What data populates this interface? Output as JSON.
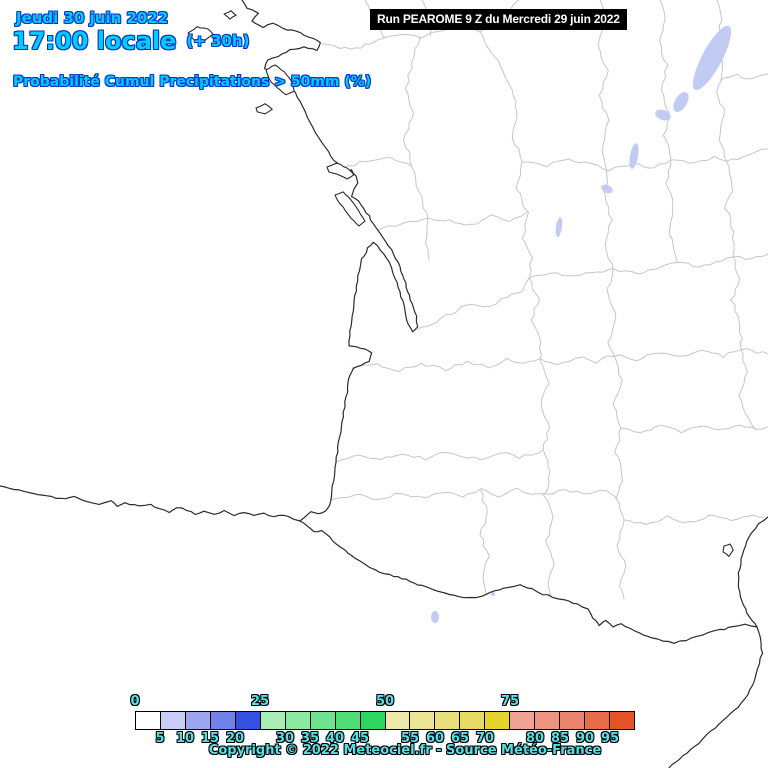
{
  "header": {
    "date": "Jeudi 30 juin 2022",
    "time": "17:00 locale",
    "offset": "(+ 30h)",
    "product": "Probabilité Cumul Precipitations > 50mm (%)"
  },
  "run_box": {
    "label": "Run PEAROME 9 Z du Mercredi 29 juin 2022"
  },
  "legend": {
    "unit": "%",
    "cells": [
      {
        "from": 0,
        "color": "#ffffff"
      },
      {
        "from": 5,
        "color": "#c9cdf6"
      },
      {
        "from": 10,
        "color": "#9ca6ef"
      },
      {
        "from": 15,
        "color": "#7280e9"
      },
      {
        "from": 20,
        "color": "#3450e2"
      },
      {
        "from": 25,
        "color": "#a9edb5"
      },
      {
        "from": 30,
        "color": "#8ce9a2"
      },
      {
        "from": 35,
        "color": "#6ee28c"
      },
      {
        "from": 40,
        "color": "#50dc77"
      },
      {
        "from": 45,
        "color": "#2ed55e"
      },
      {
        "from": 50,
        "color": "#ede9ab"
      },
      {
        "from": 55,
        "color": "#ebe593"
      },
      {
        "from": 60,
        "color": "#e9e07b"
      },
      {
        "from": 65,
        "color": "#e7da62"
      },
      {
        "from": 70,
        "color": "#e5d32e"
      },
      {
        "from": 75,
        "color": "#f0a392"
      },
      {
        "from": 80,
        "color": "#ee947f"
      },
      {
        "from": 85,
        "color": "#ec846d"
      },
      {
        "from": 90,
        "color": "#e96c4a"
      },
      {
        "from": 95,
        "color": "#e55327"
      }
    ],
    "top_labels": [
      0,
      25,
      50,
      75
    ],
    "bottom_labels": [
      5,
      10,
      15,
      20,
      30,
      35,
      40,
      45,
      55,
      60,
      65,
      70,
      80,
      85,
      90,
      95
    ]
  },
  "footer": {
    "copyright": "Copyright © 2022 Meteociel.fr - Source Météo-France"
  },
  "colors": {
    "header_text": "#00ccff",
    "header_outline": "#0033cc",
    "legend_label_text": "#55e0e6",
    "coastline": "#2b2b2b",
    "department_boundary": "#c6c6c6",
    "precip_patch": "#c2cbf3",
    "run_box_bg": "#000000",
    "run_box_text": "#ffffff",
    "sea": "#ffffff"
  }
}
